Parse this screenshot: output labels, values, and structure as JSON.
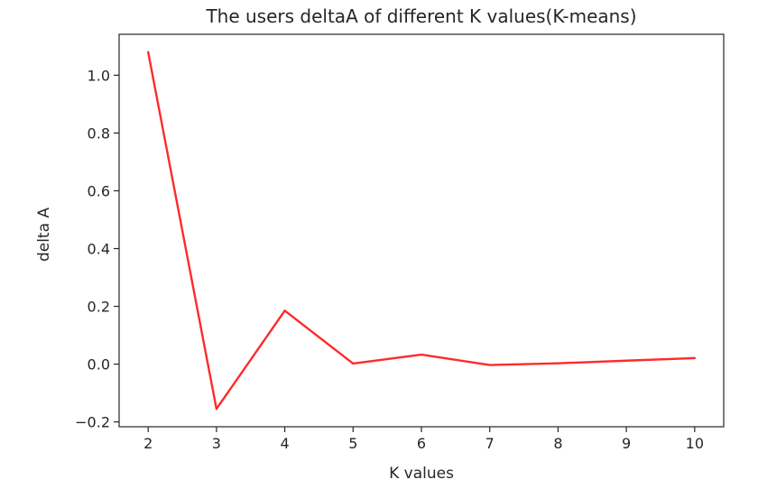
{
  "chart_data": {
    "type": "line",
    "title": "The users deltaA of different K values(K-means)",
    "xlabel": "K values",
    "ylabel": "delta A",
    "x": [
      2,
      3,
      4,
      5,
      6,
      7,
      8,
      9,
      10
    ],
    "series": [
      {
        "color": "#ff2a2a",
        "values": [
          1.08,
          -0.155,
          0.185,
          0.002,
          0.033,
          -0.003,
          0.003,
          0.012,
          0.021
        ]
      }
    ],
    "xticks": [
      2,
      3,
      4,
      5,
      6,
      7,
      8,
      9,
      10
    ],
    "xtick_labels": [
      "2",
      "3",
      "4",
      "5",
      "6",
      "7",
      "8",
      "9",
      "10"
    ],
    "yticks": [
      -0.2,
      0.0,
      0.2,
      0.4,
      0.6,
      0.8,
      1.0
    ],
    "ytick_labels": [
      "−0.2",
      "0.0",
      "0.2",
      "0.4",
      "0.6",
      "0.8",
      "1.0"
    ],
    "xlim": [
      1.575,
      10.425
    ],
    "ylim": [
      -0.2167,
      1.1417
    ],
    "grid": false,
    "legend": "none"
  }
}
